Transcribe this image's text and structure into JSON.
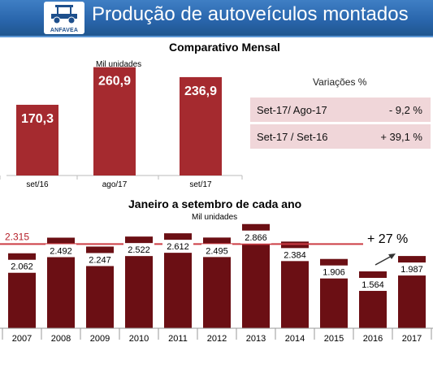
{
  "header": {
    "title": "Produção de autoveículos montados",
    "logo_text": "ANFAVEA"
  },
  "monthly": {
    "title": "Comparativo Mensal",
    "unit": "Mil unidades",
    "variations_title": "Variações %",
    "variations": [
      {
        "label": "Set-17/ Ago-17",
        "value": "- 9,2 %"
      },
      {
        "label": "Set-17 / Set-16",
        "value": "+ 39,1 %"
      }
    ]
  },
  "yearly": {
    "title": "Janeiro a setembro de cada ano",
    "unit": "Mil unidades",
    "average_label": "2.315",
    "growth_label": "+ 27 %"
  },
  "colors": {
    "header_bg": "#2a66ad",
    "bar": "#a52a2f",
    "bar_dark": "#6b0f14",
    "average_line": "#cc3d45",
    "table_bg": "#f0d6d9"
  },
  "chart_data": [
    {
      "type": "bar",
      "title": "Comparativo Mensal",
      "ylabel": "Mil unidades",
      "categories": [
        "set/16",
        "ago/17",
        "set/17"
      ],
      "values": [
        170.3,
        260.9,
        236.9
      ],
      "value_labels": [
        "170,3",
        "260,9",
        "236,9"
      ],
      "ylim": [
        0,
        270
      ]
    },
    {
      "type": "bar",
      "title": "Janeiro a setembro de cada ano",
      "ylabel": "Mil unidades",
      "categories": [
        "2007",
        "2008",
        "2009",
        "2010",
        "2011",
        "2012",
        "2013",
        "2014",
        "2015",
        "2016",
        "2017"
      ],
      "values": [
        2062,
        2492,
        2247,
        2522,
        2612,
        2495,
        2866,
        2384,
        1906,
        1564,
        1987
      ],
      "value_labels": [
        "2.062",
        "2.492",
        "2.247",
        "2.522",
        "2.612",
        "2.495",
        "2.866",
        "2.384",
        "1.906",
        "1.564",
        "1.987"
      ],
      "average": 2315,
      "ylim": [
        0,
        2950
      ]
    }
  ]
}
